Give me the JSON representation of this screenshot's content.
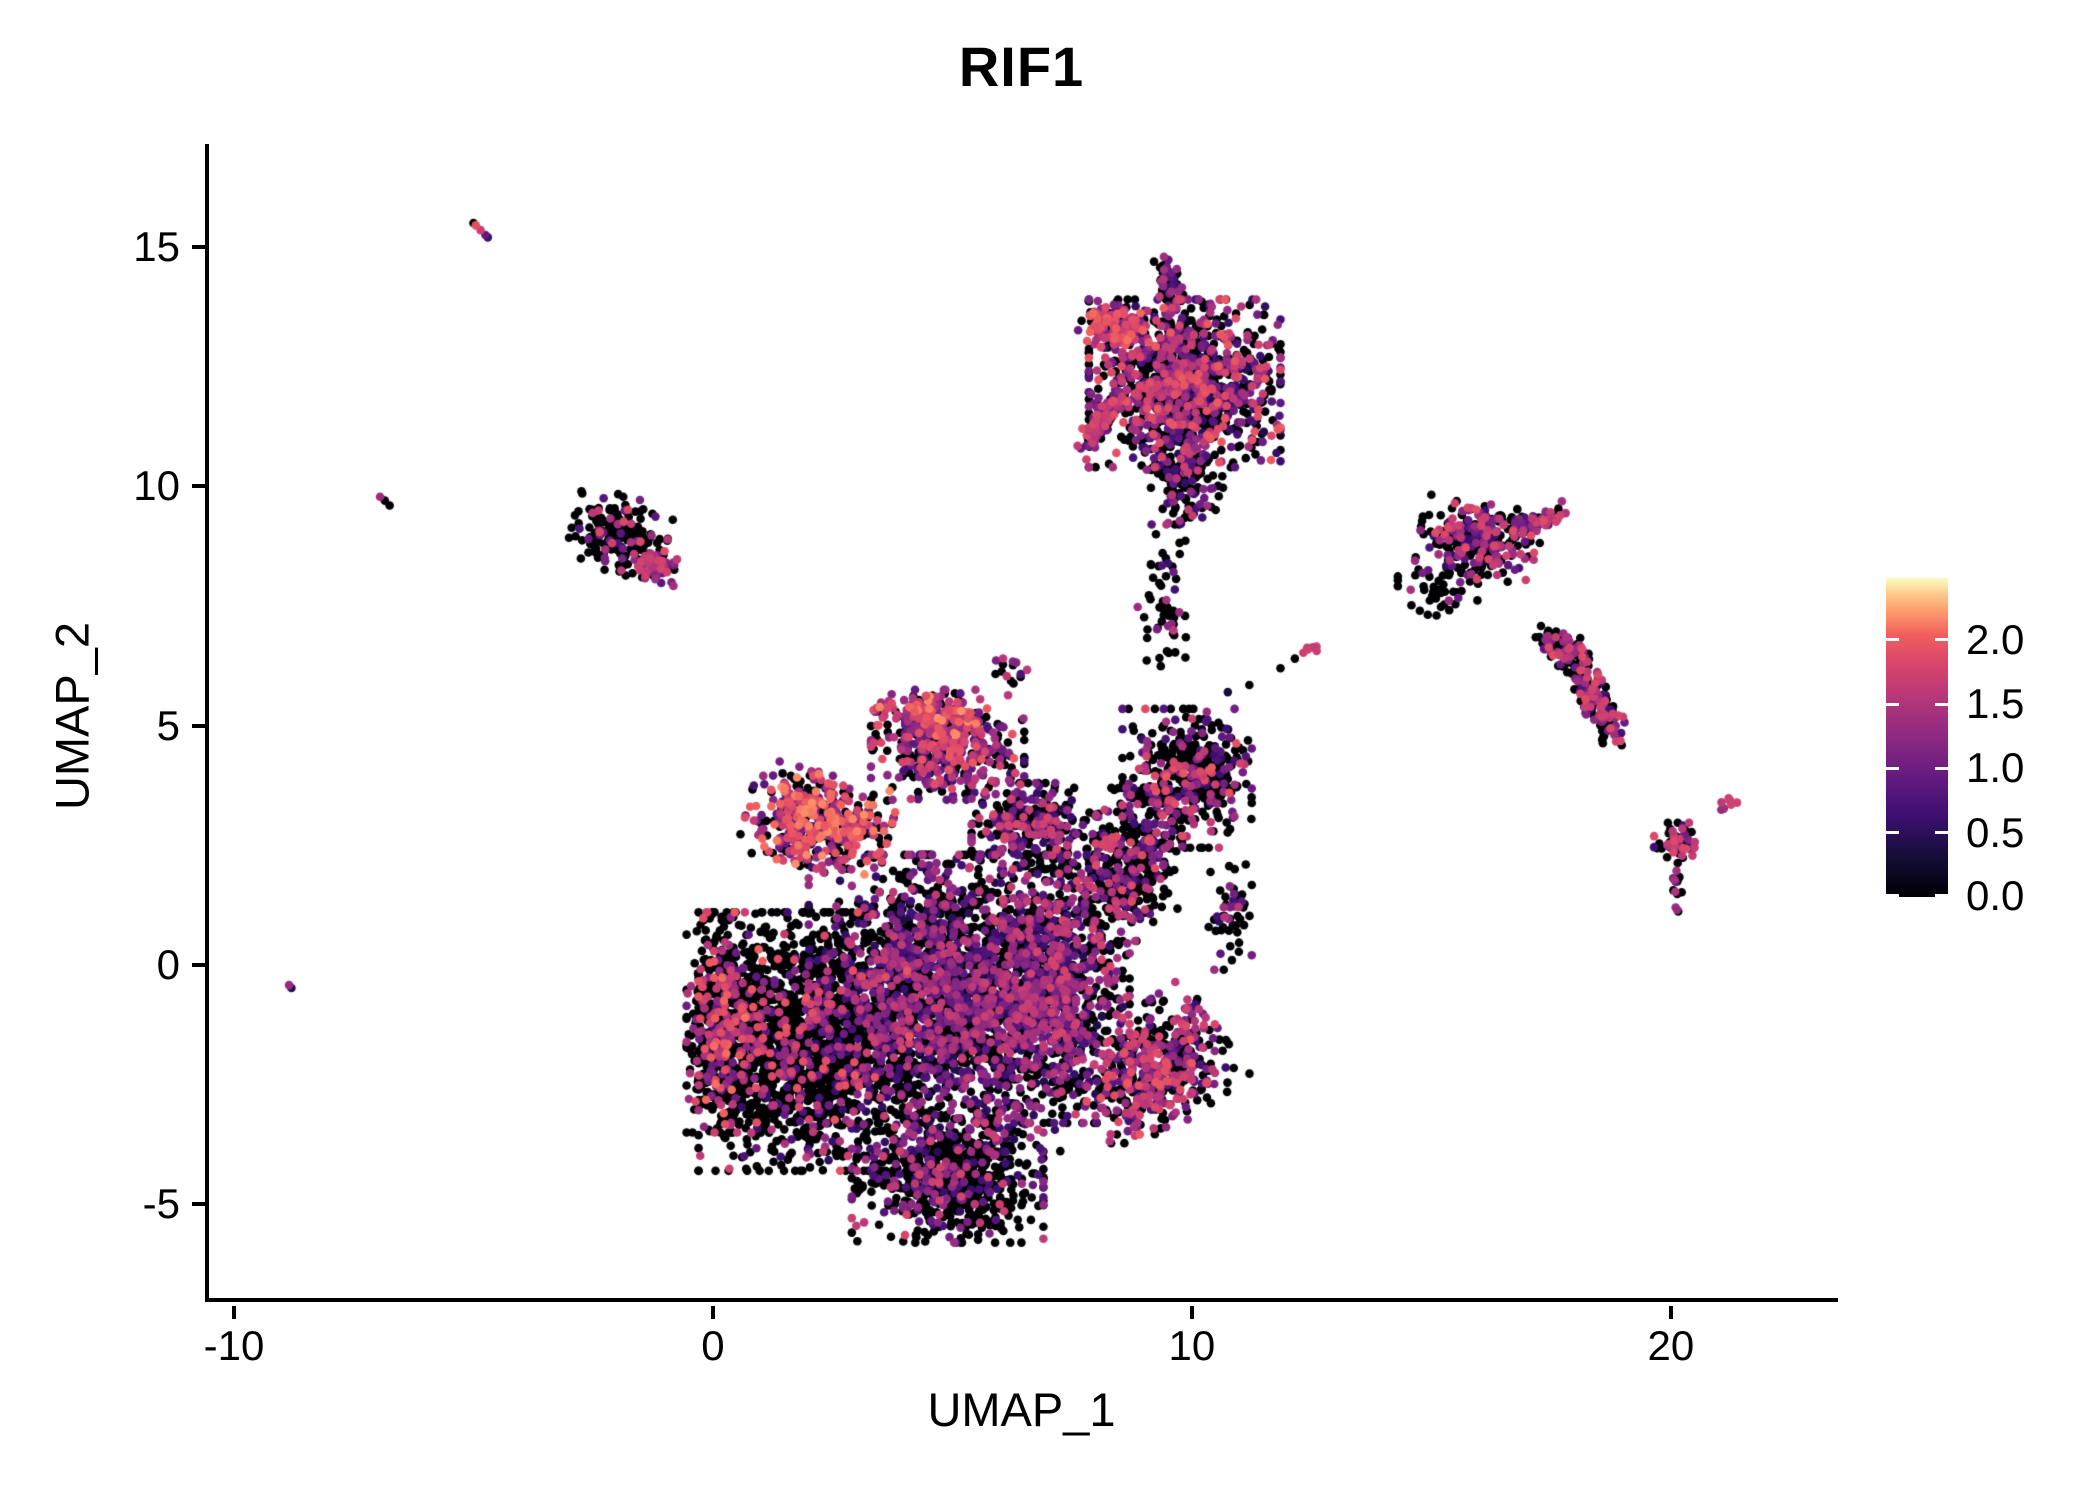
{
  "title": "RIF1",
  "axes": {
    "xlabel": "UMAP_1",
    "ylabel": "UMAP_2",
    "x_ticks": [
      {
        "label": "-10",
        "value": -10
      },
      {
        "label": "0",
        "value": 0
      },
      {
        "label": "10",
        "value": 10
      },
      {
        "label": "20",
        "value": 20
      }
    ],
    "y_ticks": [
      {
        "label": "-5",
        "value": -5
      },
      {
        "label": "0",
        "value": 0
      },
      {
        "label": "5",
        "value": 5
      },
      {
        "label": "10",
        "value": 10
      },
      {
        "label": "15",
        "value": 15
      }
    ],
    "xlim": [
      -10.605,
      23.49
    ],
    "ylim": [
      -7.04,
      17.15
    ]
  },
  "legend": {
    "ticks": [
      {
        "label": "0.0",
        "value": 0.0
      },
      {
        "label": "0.5",
        "value": 0.5
      },
      {
        "label": "1.0",
        "value": 1.0
      },
      {
        "label": "1.5",
        "value": 1.5
      },
      {
        "label": "2.0",
        "value": 2.0
      }
    ],
    "vmin": 0.0,
    "vmax": 2.48
  },
  "chart_data": {
    "type": "scatter",
    "title": "RIF1",
    "xlabel": "UMAP_1",
    "ylabel": "UMAP_2",
    "xlim": [
      -10.605,
      23.49
    ],
    "ylim": [
      -7.04,
      17.15
    ],
    "color_scale": {
      "name": "magma",
      "domain": [
        0.0,
        2.48
      ],
      "stops": [
        [
          0.0,
          "#000004"
        ],
        [
          0.125,
          "#140E36"
        ],
        [
          0.25,
          "#3B0F70"
        ],
        [
          0.375,
          "#641A80"
        ],
        [
          0.5,
          "#8C2981"
        ],
        [
          0.625,
          "#B73779"
        ],
        [
          0.75,
          "#DE4968"
        ],
        [
          0.825,
          "#F1605D"
        ],
        [
          0.9,
          "#FE9F6D"
        ],
        [
          0.95,
          "#FEC98D"
        ],
        [
          1.0,
          "#FCFDBF"
        ]
      ]
    },
    "point_radius": 4.3,
    "seed": 1337,
    "clusters": [
      {
        "name": "blob-left-lobe",
        "cx": 1.9,
        "cy": -1.6,
        "rx": 2.2,
        "ry": 2.7,
        "rot": 0,
        "n": 1500,
        "zero": 0.8,
        "vmin": 0.5,
        "vmax": 2.0,
        "bias": 0.8
      },
      {
        "name": "blob-left-edge",
        "cx": 0.25,
        "cy": -1.2,
        "rx": 0.8,
        "ry": 2.3,
        "rot": 0,
        "n": 550,
        "zero": 0.72,
        "vmin": 0.9,
        "vmax": 2.1,
        "bias": 0.8
      },
      {
        "name": "blob-upper-left-band",
        "cx": 2.2,
        "cy": 3.0,
        "rx": 1.5,
        "ry": 1.0,
        "rot": -15,
        "n": 480,
        "zero": 0.3,
        "vmin": 0.6,
        "vmax": 2.2,
        "bias": 0.65
      },
      {
        "name": "blob-dome",
        "cx": 4.9,
        "cy": 4.6,
        "rx": 1.6,
        "ry": 1.15,
        "rot": 0,
        "n": 430,
        "zero": 0.38,
        "vmin": 0.5,
        "vmax": 2.0,
        "bias": 0.8
      },
      {
        "name": "blob-dome-rim",
        "cx": 4.6,
        "cy": 5.2,
        "rx": 1.2,
        "ry": 0.4,
        "rot": -8,
        "n": 130,
        "zero": 0.2,
        "vmin": 0.9,
        "vmax": 2.2,
        "bias": 0.7
      },
      {
        "name": "dome-top-spray",
        "cx": 6.3,
        "cy": 6.1,
        "rx": 0.7,
        "ry": 0.35,
        "rot": 0,
        "n": 14,
        "zero": 0.55,
        "vmin": 0.6,
        "vmax": 1.6,
        "bias": 1.0
      },
      {
        "name": "blob-core",
        "cx": 4.7,
        "cy": -0.8,
        "rx": 2.7,
        "ry": 3.1,
        "rot": 0,
        "n": 2400,
        "zero": 0.55,
        "vmin": 0.4,
        "vmax": 1.7,
        "bias": 1.1
      },
      {
        "name": "blob-right",
        "cx": 7.1,
        "cy": -0.5,
        "rx": 1.6,
        "ry": 2.8,
        "rot": 0,
        "n": 1000,
        "zero": 0.45,
        "vmin": 0.4,
        "vmax": 1.8,
        "bias": 1.0
      },
      {
        "name": "blob-upper-right",
        "cx": 6.6,
        "cy": 2.9,
        "rx": 1.2,
        "ry": 0.9,
        "rot": 0,
        "n": 300,
        "zero": 0.5,
        "vmin": 0.5,
        "vmax": 1.8,
        "bias": 0.95
      },
      {
        "name": "blob-right-hook",
        "cx": 9.2,
        "cy": -2.2,
        "rx": 1.6,
        "ry": 1.25,
        "rot": 35,
        "n": 520,
        "zero": 0.42,
        "vmin": 0.6,
        "vmax": 2.0,
        "bias": 0.75
      },
      {
        "name": "blob-bottom",
        "cx": 4.9,
        "cy": -4.5,
        "rx": 2.0,
        "ry": 1.3,
        "rot": 0,
        "n": 650,
        "zero": 0.72,
        "vmin": 0.5,
        "vmax": 1.8,
        "bias": 1.0
      },
      {
        "name": "blob-neck",
        "cx": 8.6,
        "cy": 2.1,
        "rx": 1.2,
        "ry": 1.6,
        "rot": 0,
        "n": 380,
        "zero": 0.6,
        "vmin": 0.5,
        "vmax": 1.9,
        "bias": 0.9
      },
      {
        "name": "right-round-cluster",
        "cx": 9.9,
        "cy": 3.9,
        "rx": 1.35,
        "ry": 1.45,
        "rot": 0,
        "n": 450,
        "zero": 0.65,
        "vmin": 0.5,
        "vmax": 2.0,
        "bias": 0.9
      },
      {
        "name": "right-edge-spray",
        "cx": 10.8,
        "cy": 1.0,
        "rx": 0.45,
        "ry": 1.1,
        "rot": 0,
        "n": 50,
        "zero": 0.6,
        "vmin": 0.5,
        "vmax": 1.6,
        "bias": 1.0
      },
      {
        "name": "mid-spray",
        "cx": 9.4,
        "cy": 7.6,
        "rx": 0.55,
        "ry": 1.6,
        "rot": 0,
        "n": 55,
        "zero": 0.8,
        "vmin": 0.6,
        "vmax": 1.8,
        "bias": 1.0
      },
      {
        "name": "top-cluster",
        "cx": 9.85,
        "cy": 12.15,
        "rx": 2.0,
        "ry": 1.75,
        "rot": 0,
        "n": 1250,
        "zero": 0.48,
        "vmin": 0.4,
        "vmax": 2.0,
        "bias": 0.9
      },
      {
        "name": "top-cluster-hotspot",
        "cx": 8.35,
        "cy": 13.35,
        "rx": 0.65,
        "ry": 0.5,
        "rot": -20,
        "n": 170,
        "zero": 0.18,
        "vmin": 0.8,
        "vmax": 2.1,
        "bias": 0.7
      },
      {
        "name": "top-cluster-left-streak",
        "cx": 8.05,
        "cy": 11.3,
        "rx": 0.75,
        "ry": 0.22,
        "rot": 55,
        "n": 110,
        "zero": 0.25,
        "vmin": 0.8,
        "vmax": 1.9,
        "bias": 0.75
      },
      {
        "name": "top-cluster-arm",
        "cx": 9.5,
        "cy": 14.2,
        "rx": 0.28,
        "ry": 0.6,
        "rot": 10,
        "n": 65,
        "zero": 0.45,
        "vmin": 0.6,
        "vmax": 1.6,
        "bias": 1.0
      },
      {
        "name": "top-cluster-lower-spray",
        "cx": 9.8,
        "cy": 10.2,
        "rx": 0.85,
        "ry": 1.0,
        "rot": 0,
        "n": 170,
        "zero": 0.72,
        "vmin": 0.5,
        "vmax": 1.7,
        "bias": 1.0
      },
      {
        "name": "left-cluster",
        "cx": -1.95,
        "cy": 9.0,
        "rx": 1.0,
        "ry": 0.8,
        "rot": -15,
        "n": 190,
        "zero": 0.74,
        "vmin": 0.7,
        "vmax": 1.9,
        "bias": 0.8
      },
      {
        "name": "left-cluster-clump",
        "cx": -1.2,
        "cy": 8.35,
        "rx": 0.5,
        "ry": 0.33,
        "rot": -20,
        "n": 70,
        "zero": 0.15,
        "vmin": 0.8,
        "vmax": 1.8,
        "bias": 0.85
      },
      {
        "name": "right-mid-cluster",
        "cx": 16.0,
        "cy": 8.85,
        "rx": 1.25,
        "ry": 0.8,
        "rot": -10,
        "n": 280,
        "zero": 0.5,
        "vmin": 0.5,
        "vmax": 1.9,
        "bias": 0.85
      },
      {
        "name": "right-mid-arm",
        "cx": 17.3,
        "cy": 9.3,
        "rx": 0.75,
        "ry": 0.2,
        "rot": 22,
        "n": 55,
        "zero": 0.3,
        "vmin": 0.7,
        "vmax": 1.8,
        "bias": 0.8
      },
      {
        "name": "right-mid-below-spray",
        "cx": 15.2,
        "cy": 7.8,
        "rx": 0.9,
        "ry": 0.5,
        "rot": 0,
        "n": 45,
        "zero": 0.82,
        "vmin": 0.6,
        "vmax": 1.5,
        "bias": 1.0
      },
      {
        "name": "right-elongated-hook",
        "cx": 17.75,
        "cy": 6.65,
        "rx": 0.6,
        "ry": 0.38,
        "rot": -25,
        "n": 110,
        "zero": 0.55,
        "vmin": 0.6,
        "vmax": 1.9,
        "bias": 0.85
      },
      {
        "name": "right-elongated-tail",
        "cx": 18.45,
        "cy": 5.5,
        "rx": 0.32,
        "ry": 1.05,
        "rot": 30,
        "n": 170,
        "zero": 0.5,
        "vmin": 0.6,
        "vmax": 1.9,
        "bias": 0.85
      },
      {
        "name": "right-pill",
        "cx": 21.2,
        "cy": 3.35,
        "rx": 0.3,
        "ry": 0.12,
        "rot": 35,
        "n": 9,
        "zero": 0.0,
        "vmin": 1.1,
        "vmax": 1.9,
        "bias": 0.8
      },
      {
        "name": "small-y-cluster",
        "cx": 20.15,
        "cy": 2.55,
        "rx": 0.5,
        "ry": 0.42,
        "rot": 0,
        "n": 65,
        "zero": 0.55,
        "vmin": 0.6,
        "vmax": 1.9,
        "bias": 0.8
      },
      {
        "name": "small-y-trail",
        "cx": 20.1,
        "cy": 1.7,
        "rx": 0.12,
        "ry": 0.55,
        "rot": 5,
        "n": 10,
        "zero": 0.7,
        "vmin": 0.8,
        "vmax": 1.5,
        "bias": 1.0
      },
      {
        "name": "small-y-trail-end",
        "cx": 20.1,
        "cy": 1.15,
        "rx": 0.18,
        "ry": 0.1,
        "rot": 0,
        "n": 3,
        "zero": 0.2,
        "vmin": 1.2,
        "vmax": 1.5,
        "bias": 1.0
      },
      {
        "name": "orange-clump",
        "cx": 12.55,
        "cy": 6.6,
        "rx": 0.28,
        "ry": 0.14,
        "rot": 20,
        "n": 7,
        "zero": 0.25,
        "vmin": 1.5,
        "vmax": 2.0,
        "bias": 0.8
      },
      {
        "name": "chain-dots",
        "points": [
          [
            11.85,
            6.2,
            0
          ],
          [
            11.2,
            5.85,
            0
          ],
          [
            12.15,
            6.4,
            0
          ],
          [
            10.75,
            5.7,
            0.3
          ]
        ]
      },
      {
        "name": "spot-top-left",
        "points": [
          [
            -5.0,
            15.5,
            0
          ],
          [
            -4.95,
            15.45,
            1.9
          ],
          [
            -4.85,
            15.35,
            1.7
          ],
          [
            -4.75,
            15.25,
            0.9
          ],
          [
            -4.7,
            15.2,
            0.6
          ]
        ]
      },
      {
        "name": "spot-left",
        "points": [
          [
            -6.85,
            9.7,
            0
          ],
          [
            -6.95,
            9.78,
            1.35
          ],
          [
            -6.75,
            9.6,
            0
          ]
        ]
      },
      {
        "name": "spot-bottom-left",
        "points": [
          [
            -8.85,
            -0.42,
            1.3
          ],
          [
            -8.8,
            -0.48,
            0.45
          ]
        ]
      }
    ]
  }
}
